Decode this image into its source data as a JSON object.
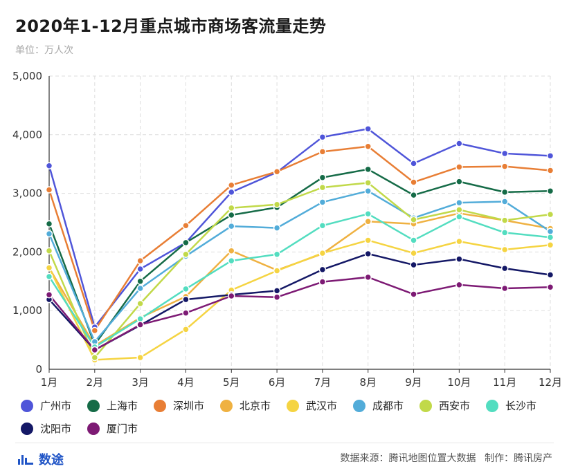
{
  "header": {
    "title": "2020年1-12月重点城市商场客流量走势",
    "unit": "单位：万人次"
  },
  "footer": {
    "brand": "数途",
    "source": "数据来源：腾讯地图位置大数据",
    "producer": "制作：腾讯房产"
  },
  "colors": {
    "广州市": "#4f55d9",
    "上海市": "#156b47",
    "深圳市": "#e87e35",
    "北京市": "#efb141",
    "武汉市": "#f5d442",
    "成都市": "#52acd9",
    "西安市": "#c1d949",
    "长沙市": "#53ddc0",
    "沈阳市": "#141866",
    "厦门市": "#7d1a74"
  },
  "chart_data": {
    "type": "line",
    "title": "2020年1-12月重点城市商场客流量走势",
    "ylabel": "万人次",
    "xlabel": "",
    "ylim": [
      0,
      5000
    ],
    "yticks": [
      "0",
      "1,000",
      "2,000",
      "3,000",
      "4,000",
      "5,000"
    ],
    "ytick_values": [
      0,
      1000,
      2000,
      3000,
      4000,
      5000
    ],
    "grid": true,
    "legend_position": "bottom",
    "categories": [
      "1月",
      "2月",
      "3月",
      "4月",
      "5月",
      "6月",
      "7月",
      "8月",
      "9月",
      "10月",
      "11月",
      "12月"
    ],
    "series": [
      {
        "name": "广州市",
        "values": [
          3470,
          720,
          1710,
          2160,
          3020,
          3360,
          3960,
          4100,
          3510,
          3850,
          3680,
          3640
        ]
      },
      {
        "name": "上海市",
        "values": [
          2480,
          420,
          1500,
          2160,
          2630,
          2760,
          3270,
          3410,
          2970,
          3200,
          3020,
          3040
        ]
      },
      {
        "name": "深圳市",
        "values": [
          3060,
          660,
          1850,
          2450,
          3140,
          3370,
          3710,
          3800,
          3190,
          3450,
          3460,
          3390
        ]
      },
      {
        "name": "北京市",
        "values": [
          1730,
          400,
          880,
          1240,
          2020,
          1690,
          1970,
          2520,
          2480,
          2660,
          2540,
          2400
        ]
      },
      {
        "name": "武汉市",
        "values": [
          1730,
          160,
          200,
          680,
          1350,
          1680,
          1980,
          2200,
          1980,
          2180,
          2040,
          2120
        ]
      },
      {
        "name": "成都市",
        "values": [
          2310,
          470,
          1380,
          1930,
          2440,
          2410,
          2850,
          3040,
          2580,
          2840,
          2860,
          2350
        ]
      },
      {
        "name": "西安市",
        "values": [
          2020,
          200,
          1120,
          1960,
          2750,
          2810,
          3100,
          3180,
          2550,
          2720,
          2540,
          2640
        ]
      },
      {
        "name": "长沙市",
        "values": [
          1580,
          380,
          860,
          1370,
          1850,
          1960,
          2450,
          2650,
          2200,
          2600,
          2330,
          2250
        ]
      },
      {
        "name": "沈阳市",
        "values": [
          1190,
          330,
          750,
          1190,
          1270,
          1340,
          1700,
          1970,
          1780,
          1880,
          1720,
          1610
        ]
      },
      {
        "name": "厦门市",
        "values": [
          1270,
          330,
          760,
          960,
          1250,
          1230,
          1490,
          1570,
          1280,
          1440,
          1380,
          1400
        ]
      }
    ]
  }
}
